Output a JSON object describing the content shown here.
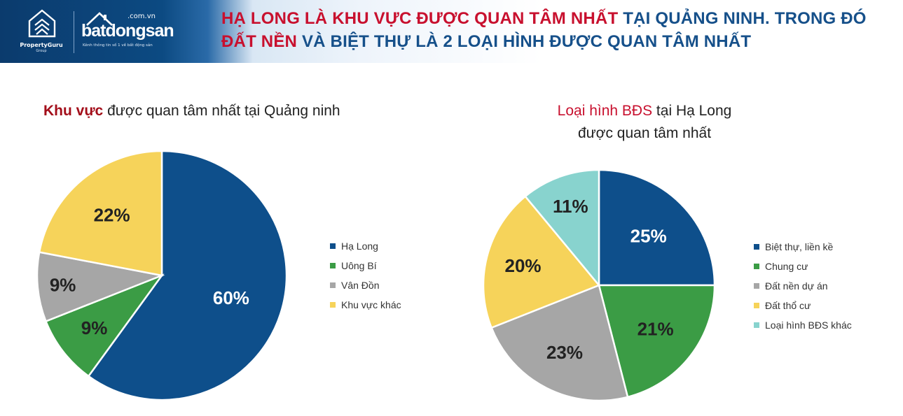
{
  "header": {
    "brand_propertyguru": "PropertyGuru",
    "brand_propertyguru_group": "Group",
    "brand_domain": ".com.vn",
    "brand_batdongsan": "batdongsan",
    "brand_tagline": "Kênh thông tin số 1 về bất động sản",
    "headline_parts": [
      {
        "text": "HẠ LONG LÀ KHU VỰC ĐƯỢC QUAN TÂM NHẤT",
        "color": "red"
      },
      {
        "text": " TẠI QUẢNG NINH. TRONG ĐÓ ",
        "color": "blue"
      },
      {
        "text": "ĐẤT NỀN",
        "color": "red"
      },
      {
        "text": " VÀ BIỆT THỰ LÀ 2 LOẠI HÌNH ĐƯỢC QUAN TÂM NHẤT",
        "color": "blue"
      }
    ]
  },
  "colors": {
    "accent_red": "#c8102e",
    "accent_blue": "#16508a",
    "header_bg": "#0b3b6d"
  },
  "chart_data": [
    {
      "type": "pie",
      "title_parts": [
        "Khu vực",
        " được quan tâm nhất tại Quảng ninh"
      ],
      "categories": [
        "Hạ Long",
        "Uông Bí",
        "Vân Đồn",
        "Khu vực khác"
      ],
      "values": [
        60,
        9,
        9,
        22
      ],
      "labels": [
        "60%",
        "9%",
        "9%",
        "22%"
      ],
      "colors": [
        "#0e4f8b",
        "#3b9c45",
        "#a6a6a6",
        "#f6d35a"
      ],
      "legend_position": "right"
    },
    {
      "type": "pie",
      "title_parts": [
        "Loại hình BĐS",
        " tại Hạ Long",
        "được quan tâm nhất"
      ],
      "categories": [
        "Biệt thự, liền kề",
        "Chung cư",
        "Đất nền dự án",
        "Đất thổ cư",
        "Loại hình BĐS khác"
      ],
      "values": [
        25,
        21,
        23,
        20,
        11
      ],
      "labels": [
        "25%",
        "21%",
        "23%",
        "20%",
        "11%"
      ],
      "colors": [
        "#0e4f8b",
        "#3b9c45",
        "#a6a6a6",
        "#f6d35a",
        "#88d3ce"
      ],
      "legend_position": "right"
    }
  ]
}
